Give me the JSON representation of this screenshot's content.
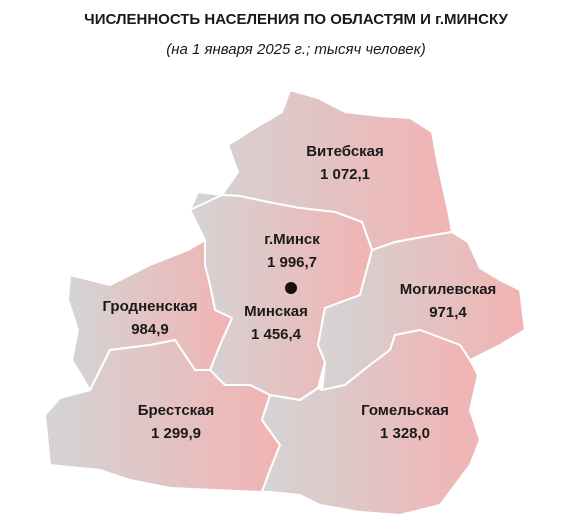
{
  "header": {
    "title": "ЧИСЛЕННОСТЬ НАСЕЛЕНИЯ ПО ОБЛАСТЯМ И г.МИНСКУ",
    "subtitle": "(на 1 января 2025 г.; тысяч человек)"
  },
  "regions": [
    {
      "name": "Витебская",
      "value": "1 072,1"
    },
    {
      "name": "г.Минск",
      "value": "1 996,7"
    },
    {
      "name": "Гродненская",
      "value": "984,9"
    },
    {
      "name": "Минская",
      "value": "1 456,4"
    },
    {
      "name": "Могилевская",
      "value": "971,4"
    },
    {
      "name": "Брестская",
      "value": "1 299,9"
    },
    {
      "name": "Гомельская",
      "value": "1 328,0"
    }
  ]
}
